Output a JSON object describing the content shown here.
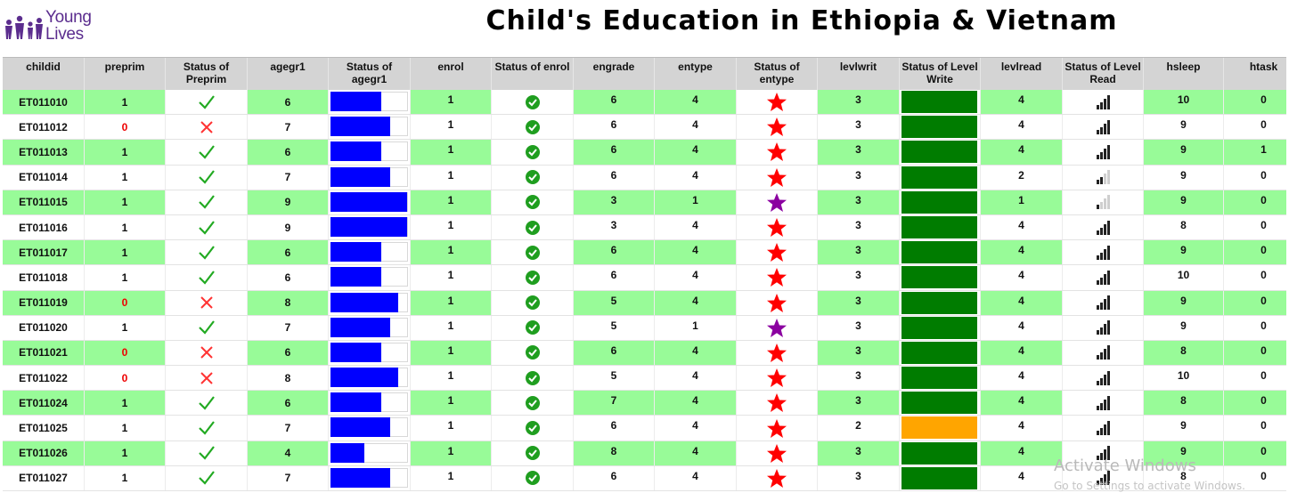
{
  "logo": {
    "line1": "Young",
    "line2": "Lives",
    "color": "#5b2d8e"
  },
  "title": "Child's Education in Ethiopia & Vietnam",
  "columns": [
    {
      "key": "childid",
      "label": "childid"
    },
    {
      "key": "preprim",
      "label": "preprim"
    },
    {
      "key": "status_preprim",
      "label": "Status of Preprim"
    },
    {
      "key": "agegr1",
      "label": "agegr1"
    },
    {
      "key": "status_agegr1",
      "label": "Status of agegr1"
    },
    {
      "key": "enrol",
      "label": "enrol"
    },
    {
      "key": "status_enrol",
      "label": "Status of enrol"
    },
    {
      "key": "engrade",
      "label": "engrade"
    },
    {
      "key": "entype",
      "label": "entype"
    },
    {
      "key": "status_entype",
      "label": "Status of entype"
    },
    {
      "key": "levlwrit",
      "label": "levlwrit"
    },
    {
      "key": "status_levelwrite",
      "label": "Status of Level Write"
    },
    {
      "key": "levlread",
      "label": "levlread"
    },
    {
      "key": "status_levelread",
      "label": "Status of Level Read"
    },
    {
      "key": "hsleep",
      "label": "hsleep"
    },
    {
      "key": "htask",
      "label": "htask"
    }
  ],
  "colors": {
    "row_highlight": "#98fb98",
    "header_bg": "#d4d4d4",
    "bar_blue": "#0000ff",
    "write_green": "#007c00",
    "write_orange": "#ffa500",
    "star_red": "#ff0000",
    "star_purple": "#8b00a0",
    "check_green": "#22aa22",
    "cross_red": "#ff3333",
    "enrol_circle": "#1f9e1f"
  },
  "rows": [
    {
      "childid": "ET011010",
      "preprim": "1",
      "agegr1": "6",
      "enrol": "1",
      "engrade": "6",
      "entype": "4",
      "levlwrit": "3",
      "levlread": "4",
      "hsleep": "10",
      "htask": "0"
    },
    {
      "childid": "ET011012",
      "preprim": "0",
      "agegr1": "7",
      "enrol": "1",
      "engrade": "6",
      "entype": "4",
      "levlwrit": "3",
      "levlread": "4",
      "hsleep": "9",
      "htask": "0"
    },
    {
      "childid": "ET011013",
      "preprim": "1",
      "agegr1": "6",
      "enrol": "1",
      "engrade": "6",
      "entype": "4",
      "levlwrit": "3",
      "levlread": "4",
      "hsleep": "9",
      "htask": "1"
    },
    {
      "childid": "ET011014",
      "preprim": "1",
      "agegr1": "7",
      "enrol": "1",
      "engrade": "6",
      "entype": "4",
      "levlwrit": "3",
      "levlread": "2",
      "hsleep": "9",
      "htask": "0"
    },
    {
      "childid": "ET011015",
      "preprim": "1",
      "agegr1": "9",
      "enrol": "1",
      "engrade": "3",
      "entype": "1",
      "levlwrit": "3",
      "levlread": "1",
      "hsleep": "9",
      "htask": "0"
    },
    {
      "childid": "ET011016",
      "preprim": "1",
      "agegr1": "9",
      "enrol": "1",
      "engrade": "3",
      "entype": "4",
      "levlwrit": "3",
      "levlread": "4",
      "hsleep": "8",
      "htask": "0"
    },
    {
      "childid": "ET011017",
      "preprim": "1",
      "agegr1": "6",
      "enrol": "1",
      "engrade": "6",
      "entype": "4",
      "levlwrit": "3",
      "levlread": "4",
      "hsleep": "9",
      "htask": "0"
    },
    {
      "childid": "ET011018",
      "preprim": "1",
      "agegr1": "6",
      "enrol": "1",
      "engrade": "6",
      "entype": "4",
      "levlwrit": "3",
      "levlread": "4",
      "hsleep": "10",
      "htask": "0"
    },
    {
      "childid": "ET011019",
      "preprim": "0",
      "agegr1": "8",
      "enrol": "1",
      "engrade": "5",
      "entype": "4",
      "levlwrit": "3",
      "levlread": "4",
      "hsleep": "9",
      "htask": "0"
    },
    {
      "childid": "ET011020",
      "preprim": "1",
      "agegr1": "7",
      "enrol": "1",
      "engrade": "5",
      "entype": "1",
      "levlwrit": "3",
      "levlread": "4",
      "hsleep": "9",
      "htask": "0"
    },
    {
      "childid": "ET011021",
      "preprim": "0",
      "agegr1": "6",
      "enrol": "1",
      "engrade": "6",
      "entype": "4",
      "levlwrit": "3",
      "levlread": "4",
      "hsleep": "8",
      "htask": "0"
    },
    {
      "childid": "ET011022",
      "preprim": "0",
      "agegr1": "8",
      "enrol": "1",
      "engrade": "5",
      "entype": "4",
      "levlwrit": "3",
      "levlread": "4",
      "hsleep": "10",
      "htask": "0"
    },
    {
      "childid": "ET011024",
      "preprim": "1",
      "agegr1": "6",
      "enrol": "1",
      "engrade": "7",
      "entype": "4",
      "levlwrit": "3",
      "levlread": "4",
      "hsleep": "8",
      "htask": "0"
    },
    {
      "childid": "ET011025",
      "preprim": "1",
      "agegr1": "7",
      "enrol": "1",
      "engrade": "6",
      "entype": "4",
      "levlwrit": "2",
      "levlread": "4",
      "hsleep": "9",
      "htask": "0"
    },
    {
      "childid": "ET011026",
      "preprim": "1",
      "agegr1": "4",
      "enrol": "1",
      "engrade": "8",
      "entype": "4",
      "levlwrit": "3",
      "levlread": "4",
      "hsleep": "9",
      "htask": "0"
    },
    {
      "childid": "ET011027",
      "preprim": "1",
      "agegr1": "7",
      "enrol": "1",
      "engrade": "6",
      "entype": "4",
      "levlwrit": "3",
      "levlread": "4",
      "hsleep": "8",
      "htask": "0"
    }
  ],
  "watermark": {
    "line1": "Activate Windows",
    "line2": "Go to Settings to activate Windows."
  }
}
